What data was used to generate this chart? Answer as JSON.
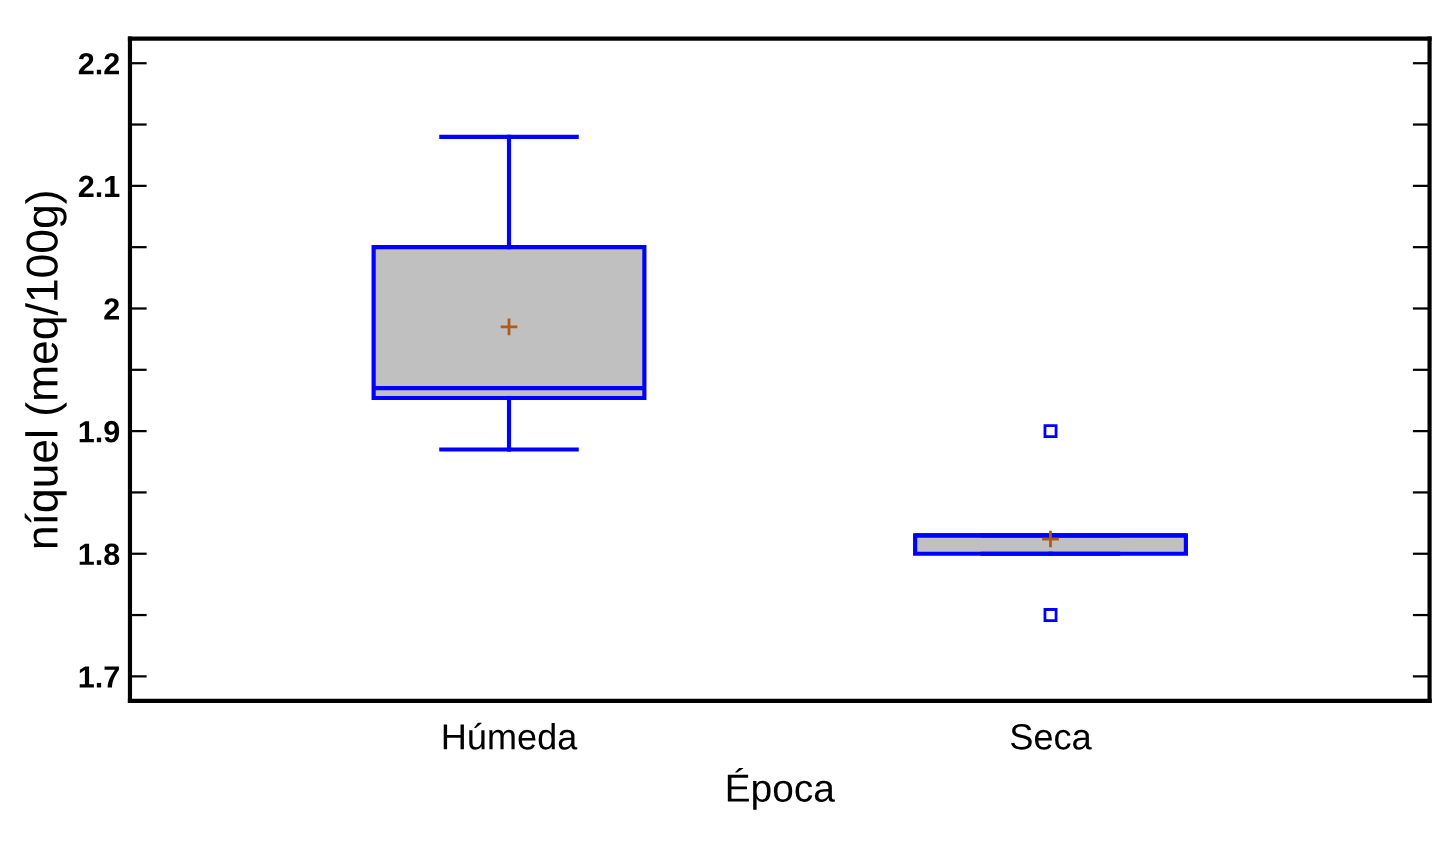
{
  "chart_data": {
    "type": "box",
    "xlabel": "Época",
    "ylabel": "níquel (meq/100g)",
    "categories": [
      "Húmeda",
      "Seca"
    ],
    "boxes": [
      {
        "low": 1.885,
        "q1": 1.927,
        "median": 1.935,
        "q3": 2.05,
        "high": 2.14,
        "mean": 1.985
      },
      {
        "low": 1.8,
        "q1": 1.8,
        "median": 1.815,
        "q3": 1.815,
        "high": 1.815,
        "mean": 1.812,
        "outliers": [
          1.9,
          1.75
        ]
      }
    ],
    "color": "#0000ff",
    "ylim": [
      1.68,
      2.22
    ],
    "yticks": [
      1.7,
      {
        "value": 1.75,
        "label": null
      },
      1.8,
      {
        "value": 1.85,
        "label": null
      },
      1.9,
      {
        "value": 1.95,
        "label": null
      },
      2,
      {
        "value": 2.05,
        "label": null
      },
      2.1,
      {
        "value": 2.15,
        "label": null
      },
      2.2
    ],
    "grid": false,
    "legend": false
  }
}
